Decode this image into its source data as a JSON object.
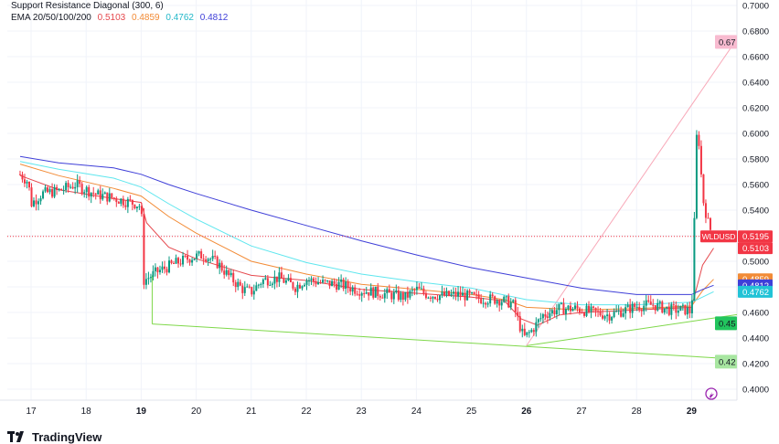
{
  "legend": {
    "line1": "Support Resistance Diagonal (300, 6)",
    "ema_label": "EMA 20/50/100/200",
    "ema_values": [
      "0.5103",
      "0.4859",
      "0.4762",
      "0.4812"
    ]
  },
  "logo_text": "TradingView",
  "colors": {
    "ema20": "#e5484d",
    "ema50": "#f28b36",
    "ema100": "#5ee6ee",
    "ema200": "#3f3fd8",
    "up": "#089981",
    "down": "#f23645",
    "support": "#7fd84a",
    "resistance": "#f8a8b8",
    "price_line": "#f23645",
    "up_tag": "#22c55e",
    "resistance_tag": "#f8bbd0"
  },
  "chart_data": {
    "type": "candlestick",
    "symbol": "WLDUSD",
    "ylim": [
      0.39,
      0.71
    ],
    "xlim": [
      16.8,
      30.4
    ],
    "y_ticks": [
      "0.4000",
      "0.4200",
      "0.4400",
      "0.4600",
      "0.4800",
      "0.5000",
      "0.5200",
      "0.5400",
      "0.5600",
      "0.5800",
      "0.6000",
      "0.6200",
      "0.6400",
      "0.6600",
      "0.6800",
      "0.7000"
    ],
    "x_ticks": [
      {
        "label": "17",
        "x": 17,
        "bold": false
      },
      {
        "label": "18",
        "x": 18,
        "bold": false
      },
      {
        "label": "19",
        "x": 19,
        "bold": true
      },
      {
        "label": "20",
        "x": 20,
        "bold": false
      },
      {
        "label": "21",
        "x": 21,
        "bold": false
      },
      {
        "label": "22",
        "x": 22,
        "bold": false
      },
      {
        "label": "23",
        "x": 23,
        "bold": false
      },
      {
        "label": "24",
        "x": 24,
        "bold": false
      },
      {
        "label": "25",
        "x": 25,
        "bold": false
      },
      {
        "label": "26",
        "x": 26,
        "bold": true
      },
      {
        "label": "27",
        "x": 27,
        "bold": false
      },
      {
        "label": "28",
        "x": 28,
        "bold": false
      },
      {
        "label": "29",
        "x": 29,
        "bold": true
      }
    ],
    "price_anchors": [
      [
        16.8,
        0.568
      ],
      [
        16.95,
        0.562
      ],
      [
        17.0,
        0.545
      ],
      [
        17.2,
        0.553
      ],
      [
        17.5,
        0.555
      ],
      [
        17.8,
        0.56
      ],
      [
        18.0,
        0.556
      ],
      [
        18.2,
        0.552
      ],
      [
        18.45,
        0.55
      ],
      [
        18.7,
        0.547
      ],
      [
        18.9,
        0.545
      ],
      [
        19.0,
        0.543
      ],
      [
        19.05,
        0.485
      ],
      [
        19.3,
        0.492
      ],
      [
        19.6,
        0.498
      ],
      [
        19.9,
        0.503
      ],
      [
        20.15,
        0.505
      ],
      [
        20.4,
        0.498
      ],
      [
        20.6,
        0.488
      ],
      [
        20.85,
        0.478
      ],
      [
        21.0,
        0.476
      ],
      [
        21.2,
        0.485
      ],
      [
        21.5,
        0.487
      ],
      [
        21.8,
        0.48
      ],
      [
        22.0,
        0.486
      ],
      [
        22.3,
        0.483
      ],
      [
        22.6,
        0.482
      ],
      [
        22.9,
        0.478
      ],
      [
        23.2,
        0.476
      ],
      [
        23.5,
        0.474
      ],
      [
        23.8,
        0.472
      ],
      [
        24.0,
        0.478
      ],
      [
        24.2,
        0.474
      ],
      [
        24.5,
        0.473
      ],
      [
        24.8,
        0.474
      ],
      [
        25.1,
        0.471
      ],
      [
        25.5,
        0.47
      ],
      [
        25.75,
        0.467
      ],
      [
        25.95,
        0.44
      ],
      [
        26.1,
        0.446
      ],
      [
        26.3,
        0.458
      ],
      [
        26.6,
        0.463
      ],
      [
        26.9,
        0.463
      ],
      [
        27.2,
        0.46
      ],
      [
        27.5,
        0.458
      ],
      [
        27.8,
        0.462
      ],
      [
        28.0,
        0.465
      ],
      [
        28.3,
        0.466
      ],
      [
        28.6,
        0.462
      ],
      [
        28.9,
        0.462
      ],
      [
        29.0,
        0.46
      ],
      [
        29.05,
        0.53
      ],
      [
        29.1,
        0.61
      ],
      [
        29.15,
        0.585
      ],
      [
        29.2,
        0.55
      ],
      [
        29.3,
        0.53
      ],
      [
        29.38,
        0.52
      ]
    ],
    "ema": [
      {
        "name": "EMA 20",
        "value": 0.5103,
        "anchors": [
          [
            16.8,
            0.567
          ],
          [
            17.5,
            0.556
          ],
          [
            18.5,
            0.549
          ],
          [
            19.0,
            0.546
          ],
          [
            19.1,
            0.53
          ],
          [
            19.5,
            0.511
          ],
          [
            20.0,
            0.502
          ],
          [
            21.0,
            0.489
          ],
          [
            22.0,
            0.485
          ],
          [
            23.0,
            0.478
          ],
          [
            24.0,
            0.475
          ],
          [
            25.0,
            0.472
          ],
          [
            25.6,
            0.469
          ],
          [
            25.9,
            0.455
          ],
          [
            26.2,
            0.45
          ],
          [
            26.6,
            0.458
          ],
          [
            27.0,
            0.46
          ],
          [
            28.0,
            0.462
          ],
          [
            29.0,
            0.464
          ],
          [
            29.2,
            0.497
          ],
          [
            29.4,
            0.5103
          ]
        ]
      },
      {
        "name": "EMA 50",
        "value": 0.4859,
        "anchors": [
          [
            16.8,
            0.576
          ],
          [
            17.5,
            0.567
          ],
          [
            18.5,
            0.557
          ],
          [
            19.0,
            0.551
          ],
          [
            19.5,
            0.535
          ],
          [
            20.0,
            0.522
          ],
          [
            21.0,
            0.5
          ],
          [
            22.0,
            0.49
          ],
          [
            23.0,
            0.482
          ],
          [
            24.0,
            0.478
          ],
          [
            25.0,
            0.474
          ],
          [
            25.6,
            0.47
          ],
          [
            26.0,
            0.464
          ],
          [
            27.0,
            0.462
          ],
          [
            28.0,
            0.463
          ],
          [
            29.0,
            0.465
          ],
          [
            29.2,
            0.477
          ],
          [
            29.4,
            0.4859
          ]
        ]
      },
      {
        "name": "EMA 100",
        "value": 0.4762,
        "anchors": [
          [
            16.8,
            0.578
          ],
          [
            17.5,
            0.572
          ],
          [
            18.5,
            0.565
          ],
          [
            19.0,
            0.558
          ],
          [
            19.5,
            0.545
          ],
          [
            20.0,
            0.533
          ],
          [
            21.0,
            0.512
          ],
          [
            22.0,
            0.499
          ],
          [
            23.0,
            0.49
          ],
          [
            24.0,
            0.484
          ],
          [
            25.0,
            0.479
          ],
          [
            26.0,
            0.47
          ],
          [
            27.0,
            0.466
          ],
          [
            28.0,
            0.466
          ],
          [
            29.0,
            0.468
          ],
          [
            29.2,
            0.472
          ],
          [
            29.4,
            0.4762
          ]
        ]
      },
      {
        "name": "EMA 200",
        "value": 0.4812,
        "anchors": [
          [
            16.8,
            0.582
          ],
          [
            17.5,
            0.577
          ],
          [
            18.5,
            0.573
          ],
          [
            19.0,
            0.568
          ],
          [
            19.5,
            0.56
          ],
          [
            20.0,
            0.553
          ],
          [
            21.0,
            0.54
          ],
          [
            22.0,
            0.528
          ],
          [
            23.0,
            0.516
          ],
          [
            24.0,
            0.505
          ],
          [
            25.0,
            0.495
          ],
          [
            26.0,
            0.487
          ],
          [
            27.0,
            0.479
          ],
          [
            28.0,
            0.474
          ],
          [
            29.0,
            0.474
          ],
          [
            29.2,
            0.478
          ],
          [
            29.4,
            0.4812
          ]
        ]
      }
    ],
    "trendlines": [
      {
        "name": "support-upper",
        "color": "support",
        "from": [
          26.0,
          0.434
        ],
        "to": [
          30.4,
          0.462
        ]
      },
      {
        "name": "support-lower",
        "color": "support",
        "from": [
          19.2,
          0.451
        ],
        "to": [
          30.4,
          0.422
        ]
      },
      {
        "name": "resistance",
        "color": "resistance",
        "from": [
          26.0,
          0.434
        ],
        "to": [
          30.4,
          0.71
        ]
      },
      {
        "name": "support-vertical",
        "color": "support",
        "from": [
          19.2,
          0.451
        ],
        "to": [
          19.2,
          0.489
        ]
      }
    ],
    "current_price_line": 0.5195,
    "axis_tags": [
      {
        "text": "0.67",
        "value": 0.6715,
        "bg": "#f8bbd0",
        "fg": "#131722",
        "left": true
      },
      {
        "text": "WLDUSD",
        "value": 0.5195,
        "bg": "#f23645",
        "fg": "#ffffff",
        "left": true
      },
      {
        "text": "0.5195",
        "value": 0.5195,
        "bg": "#f23645",
        "fg": "#ffffff"
      },
      {
        "text": "0.5103",
        "value": 0.5103,
        "bg": "#f23645",
        "fg": "#ffffff"
      },
      {
        "text": "0.4859",
        "value": 0.4859,
        "bg": "#f28b36",
        "fg": "#ffffff"
      },
      {
        "text": "0.4812",
        "value": 0.4812,
        "bg": "#3f3fd8",
        "fg": "#ffffff"
      },
      {
        "text": "0.4762",
        "value": 0.4762,
        "bg": "#22c3d6",
        "fg": "#ffffff"
      },
      {
        "text": "0.45",
        "value": 0.4515,
        "bg": "#22c55e",
        "fg": "#131722",
        "left": true
      },
      {
        "text": "0.42",
        "value": 0.4215,
        "bg": "#a8e6a1",
        "fg": "#131722",
        "left": true
      }
    ]
  }
}
